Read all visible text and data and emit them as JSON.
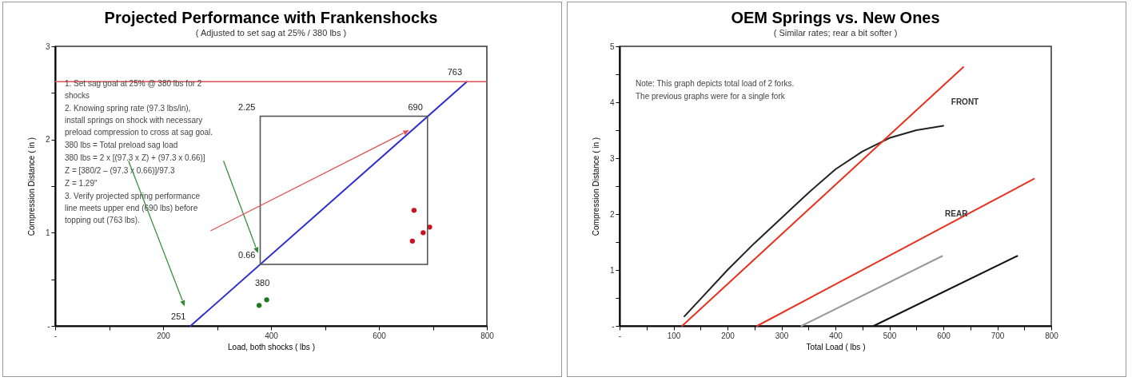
{
  "chart_data": [
    {
      "type": "line",
      "title": "Projected Performance with Frankenshocks",
      "subtitle": "( Adjusted to set sag at 25% / 380 lbs )",
      "xlabel": "Load, both shocks  ( lbs )",
      "ylabel": "Compression Distance  ( in )",
      "xlim": [
        0,
        800
      ],
      "xticks": [
        {
          "value": 0,
          "label": "-"
        },
        {
          "value": 100,
          "label": null
        },
        200,
        {
          "value": 300,
          "label": null
        },
        400,
        {
          "value": 500,
          "label": null
        },
        600,
        {
          "value": 700,
          "label": null
        },
        800
      ],
      "ylim": [
        0,
        3
      ],
      "yticks": [
        {
          "value": 0,
          "label": "-"
        },
        {
          "value": 0.5,
          "label": null
        },
        1,
        {
          "value": 1.5,
          "label": null
        },
        2,
        {
          "value": 2.5,
          "label": null
        },
        3
      ],
      "series": [
        {
          "color": "#2f2fd0",
          "x": [
            251,
            763
          ],
          "values": [
            0,
            2.62
          ]
        },
        {
          "type": "scatter",
          "marker": "circle",
          "color": "#1a7a1a",
          "x": [
            378,
            392
          ],
          "values": [
            0.22,
            0.28
          ]
        },
        {
          "type": "scatter",
          "marker": "circle",
          "color": "#cc1020",
          "x": [
            662,
            665,
            682,
            694
          ],
          "values": [
            0.91,
            1.24,
            1.0,
            1.06
          ]
        }
      ],
      "ref_lines": [
        {
          "axis": "y",
          "value": 2.62,
          "color": "#e05050"
        }
      ],
      "annotations": [
        "1.  Set sag goal at 25% @ 380 lbs for 2 shocks",
        "2.  Knowing  spring rate (97.3 lbs/in), install springs on shock with necessary preload compression to cross at sag goal.",
        "380 lbs = Total preload sag load",
        "380 lbs = 2 x [(97.3 x Z) + (97.3 x 0.66)]",
        "Z = [380/2 – (97.3 x 0.66)]/97.3",
        "Z = 1.29\"",
        "3.   Verify projected spring performance line meets upper end (690 lbs) before topping out (763 lbs).",
        {
          "text": "251",
          "x": 251,
          "y": 0
        },
        {
          "text": "380",
          "x": 378,
          "y": 0.22
        },
        {
          "text": "0.66",
          "x": 380,
          "y": 0.66
        },
        "2.25",
        {
          "text": "690",
          "x": 690,
          "y": 2.25
        },
        {
          "text": "763",
          "x": 763,
          "y": 2.62
        }
      ]
    },
    {
      "type": "line",
      "title": "OEM Springs vs. New Ones",
      "subtitle": "( Similar rates; rear a bit softer )",
      "xlabel": "Total Load  ( lbs )",
      "ylabel": "Compression Distance  ( in )",
      "xlim": [
        0,
        800
      ],
      "xticks": [
        {
          "value": 0,
          "label": "-"
        },
        {
          "value": 50,
          "label": null
        },
        100,
        {
          "value": 150,
          "label": null
        },
        200,
        {
          "value": 250,
          "label": null
        },
        300,
        {
          "value": 350,
          "label": null
        },
        400,
        {
          "value": 450,
          "label": null
        },
        500,
        {
          "value": 550,
          "label": null
        },
        600,
        {
          "value": 650,
          "label": null
        },
        700,
        {
          "value": 750,
          "label": null
        },
        800
      ],
      "ylim": [
        0,
        5
      ],
      "yticks": [
        {
          "value": 0,
          "label": "-"
        },
        {
          "value": 0.5,
          "label": null
        },
        1,
        {
          "value": 1.5,
          "label": null
        },
        2,
        {
          "value": 2.5,
          "label": null
        },
        3,
        {
          "value": 3.5,
          "label": null
        },
        4,
        {
          "value": 4.5,
          "label": null
        },
        5
      ],
      "series": [
        {
          "color": "#222222",
          "x": [
            120,
            150,
            200,
            250,
            300,
            350,
            400,
            450,
            500,
            550,
            600
          ],
          "values": [
            0.17,
            0.48,
            1.0,
            1.48,
            1.93,
            2.38,
            2.8,
            3.12,
            3.36,
            3.5,
            3.58
          ]
        },
        {
          "color": "#e8321e",
          "x": [
            116,
            637
          ],
          "values": [
            0,
            4.63
          ]
        },
        {
          "color": "#e8321e",
          "x": [
            255,
            768
          ],
          "values": [
            0,
            2.63
          ]
        },
        {
          "color": "#999999",
          "x": [
            337,
            598
          ],
          "values": [
            0,
            1.25
          ]
        },
        {
          "color": "#111111",
          "x": [
            471,
            737
          ],
          "values": [
            0,
            1.25
          ]
        }
      ],
      "annotations": [
        "Note:   This graph depicts total load of 2 forks.",
        "The previous graphs were for a single fork",
        "FRONT",
        "REAR"
      ]
    }
  ]
}
